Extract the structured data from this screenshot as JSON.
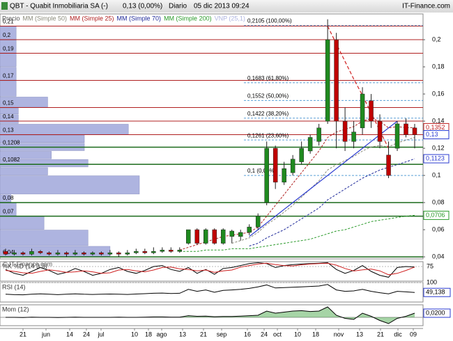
{
  "header": {
    "title": "QBT - Quabit Inmobiliaria SA (-)",
    "quote": "0,13 (0,00%)",
    "period": "Diario",
    "date": "05 dic 2013 09:24",
    "brand": "IT-Finance.com"
  },
  "watermark": "© IT-Finance.com",
  "x_axis": {
    "labels": [
      "21",
      "jun",
      "14",
      "24",
      "jul",
      "10",
      "18",
      "ago",
      "13",
      "21",
      "sep",
      "16",
      "24",
      "oct",
      "10",
      "18",
      "nov",
      "13",
      "21",
      "dic",
      "09"
    ]
  },
  "chart_data": [
    {
      "type": "candlestick",
      "legend_title": "Precio",
      "up_color": "#1f8a1f",
      "down_color": "#c00000",
      "open": [
        0.044,
        0.042,
        0.043,
        0.042,
        0.044,
        0.043,
        0.042,
        0.043,
        0.042,
        0.043,
        0.042,
        0.043,
        0.042,
        0.043,
        0.042,
        0.043,
        0.044,
        0.043,
        0.044,
        0.045,
        0.044,
        0.05,
        0.06,
        0.05,
        0.06,
        0.05,
        0.055,
        0.055,
        0.058,
        0.062,
        0.08,
        0.12,
        0.095,
        0.102,
        0.11,
        0.118,
        0.125,
        0.14,
        0.2,
        0.14,
        0.125,
        0.135,
        0.155,
        0.14,
        0.115,
        0.12,
        0.138,
        0.135
      ],
      "high": [
        0.046,
        0.045,
        0.044,
        0.046,
        0.045,
        0.044,
        0.045,
        0.044,
        0.045,
        0.044,
        0.044,
        0.044,
        0.045,
        0.044,
        0.045,
        0.046,
        0.046,
        0.047,
        0.047,
        0.047,
        0.047,
        0.06,
        0.061,
        0.061,
        0.061,
        0.061,
        0.06,
        0.06,
        0.064,
        0.072,
        0.125,
        0.122,
        0.11,
        0.115,
        0.125,
        0.13,
        0.138,
        0.215,
        0.205,
        0.15,
        0.14,
        0.165,
        0.16,
        0.145,
        0.125,
        0.14,
        0.142,
        0.138
      ],
      "low": [
        0.041,
        0.041,
        0.041,
        0.041,
        0.042,
        0.041,
        0.041,
        0.04,
        0.041,
        0.041,
        0.041,
        0.041,
        0.041,
        0.04,
        0.041,
        0.042,
        0.042,
        0.042,
        0.043,
        0.043,
        0.043,
        0.049,
        0.049,
        0.049,
        0.049,
        0.049,
        0.05,
        0.052,
        0.056,
        0.06,
        0.078,
        0.09,
        0.093,
        0.1,
        0.108,
        0.116,
        0.122,
        0.138,
        0.12,
        0.118,
        0.12,
        0.13,
        0.135,
        0.12,
        0.098,
        0.118,
        0.128,
        0.12
      ],
      "close": [
        0.042,
        0.043,
        0.042,
        0.044,
        0.043,
        0.042,
        0.043,
        0.042,
        0.043,
        0.042,
        0.043,
        0.042,
        0.043,
        0.042,
        0.043,
        0.044,
        0.043,
        0.044,
        0.045,
        0.044,
        0.045,
        0.06,
        0.05,
        0.06,
        0.05,
        0.06,
        0.059,
        0.058,
        0.062,
        0.07,
        0.12,
        0.095,
        0.105,
        0.112,
        0.12,
        0.128,
        0.135,
        0.2,
        0.14,
        0.125,
        0.132,
        0.16,
        0.14,
        0.125,
        0.1,
        0.138,
        0.13,
        0.13
      ],
      "series": [
        {
          "name": "MM (Simple 50)",
          "color": "#8a8a7a",
          "values": [
            null,
            null,
            null,
            null,
            null,
            null,
            null,
            null,
            null,
            null,
            null,
            null,
            null,
            null,
            null,
            null,
            null,
            null,
            null,
            null,
            null,
            null,
            null,
            null,
            null,
            null,
            0.05,
            0.052,
            0.054,
            0.058,
            0.064,
            0.068,
            0.073,
            0.078,
            0.084,
            0.09,
            0.096,
            0.104,
            0.108,
            0.111,
            0.114,
            0.118,
            0.121,
            0.122,
            0.121,
            0.124,
            0.126,
            0.128
          ]
        },
        {
          "name": "MM (Simple 25)",
          "color": "#b02020",
          "values": [
            null,
            null,
            null,
            null,
            null,
            null,
            null,
            null,
            null,
            null,
            null,
            null,
            null,
            null,
            null,
            null,
            null,
            null,
            null,
            null,
            0.045,
            0.047,
            0.049,
            0.051,
            0.053,
            0.055,
            0.056,
            0.057,
            0.058,
            0.062,
            0.07,
            0.078,
            0.086,
            0.094,
            0.102,
            0.11,
            0.118,
            0.128,
            0.132,
            0.134,
            0.136,
            0.14,
            0.142,
            0.14,
            0.135,
            0.136,
            0.1352,
            0.1352
          ]
        },
        {
          "name": "MM (Simple 70)",
          "color": "#1f2a9a",
          "values": [
            null,
            null,
            null,
            null,
            null,
            null,
            null,
            null,
            null,
            null,
            null,
            null,
            null,
            null,
            null,
            null,
            null,
            null,
            null,
            null,
            null,
            null,
            null,
            null,
            null,
            null,
            null,
            null,
            0.048,
            0.05,
            0.054,
            0.057,
            0.06,
            0.064,
            0.068,
            0.072,
            0.076,
            0.082,
            0.086,
            0.09,
            0.094,
            0.098,
            0.101,
            0.104,
            0.106,
            0.108,
            0.11,
            0.1123
          ]
        },
        {
          "name": "MM (Simple 200)",
          "color": "#2a9a2a",
          "values": [
            null,
            null,
            null,
            null,
            null,
            null,
            null,
            null,
            null,
            null,
            null,
            null,
            null,
            null,
            null,
            null,
            null,
            null,
            null,
            null,
            0.044,
            0.044,
            0.044,
            0.045,
            0.045,
            0.045,
            0.046,
            0.046,
            0.046,
            0.047,
            0.048,
            0.049,
            0.05,
            0.051,
            0.052,
            0.053,
            0.055,
            0.057,
            0.059,
            0.06,
            0.062,
            0.064,
            0.066,
            0.067,
            0.068,
            0.069,
            0.07,
            0.0706
          ]
        }
      ],
      "trendlines": [
        {
          "color": "#2a3ad0",
          "values": [
            null,
            null,
            null,
            null,
            null,
            null,
            null,
            null,
            null,
            null,
            null,
            null,
            null,
            null,
            null,
            null,
            null,
            null,
            null,
            null,
            null,
            null,
            null,
            null,
            null,
            null,
            null,
            null,
            0.055,
            0.06,
            0.065,
            0.07,
            0.075,
            0.08,
            0.085,
            0.09,
            0.095,
            0.1,
            0.105,
            0.11,
            0.115,
            0.12,
            0.125,
            0.13,
            0.135,
            0.14,
            null,
            null
          ]
        },
        {
          "color": "#d02020",
          "values": [
            null,
            null,
            null,
            null,
            null,
            null,
            null,
            null,
            null,
            null,
            null,
            null,
            null,
            null,
            null,
            null,
            null,
            null,
            null,
            null,
            null,
            null,
            null,
            null,
            null,
            null,
            null,
            null,
            null,
            null,
            null,
            null,
            null,
            null,
            null,
            null,
            null,
            0.21,
            0.197,
            0.184,
            0.171,
            0.159,
            0.146,
            0.133,
            0.12,
            null,
            null,
            null
          ]
        }
      ],
      "vnp": {
        "name": "VNP (25,1)",
        "color": "#aeb4e0",
        "bins": [
          0.04,
          0.048,
          0.06,
          0.07,
          0.08,
          0.086,
          0.1,
          0.106,
          0.112,
          0.118,
          0.124,
          0.13,
          0.138,
          0.145,
          0.15,
          0.158,
          0.17,
          0.18,
          0.19,
          0.2,
          0.21
        ],
        "values": [
          150,
          120,
          60,
          22,
          15,
          190,
          65,
          120,
          70,
          115,
          115,
          175,
          25,
          25,
          65,
          22,
          22,
          22,
          22,
          22
        ]
      },
      "levels": [
        {
          "value": 0.21,
          "label": "0,21",
          "color": "#b02020"
        },
        {
          "value": 0.2,
          "label": "0,2",
          "color": "#b02020"
        },
        {
          "value": 0.19,
          "label": "0,19",
          "color": "#b02020"
        },
        {
          "value": 0.17,
          "label": "0,17",
          "color": "#b02020"
        },
        {
          "value": 0.15,
          "label": "0,15",
          "color": "#b02020"
        },
        {
          "value": 0.14,
          "label": "0,14",
          "color": "#b02020"
        },
        {
          "value": 0.13,
          "label": "0,13",
          "color": "#b02020"
        },
        {
          "value": 0.1208,
          "label": "0,1208",
          "color": "#1a6a1a"
        },
        {
          "value": 0.1082,
          "label": "0,1082",
          "color": "#1a6a1a"
        },
        {
          "value": 0.08,
          "label": "0,08",
          "color": "#1a6a1a"
        },
        {
          "value": 0.07,
          "label": "0,07",
          "color": "#1a6a1a"
        },
        {
          "value": 0.04,
          "label": "0,04",
          "color": "#1a6a1a"
        }
      ],
      "fibonacci": [
        {
          "value": 0.2105,
          "label": "0,2105 (100,00%)"
        },
        {
          "value": 0.1683,
          "label": "0,1683 (61,80%)"
        },
        {
          "value": 0.1552,
          "label": "0,1552 (50,00%)"
        },
        {
          "value": 0.1422,
          "label": "0,1422 (38,20%)"
        },
        {
          "value": 0.1261,
          "label": "0,1261 (23,60%)"
        },
        {
          "value": 0.1,
          "label": "0,1 (0,00%)"
        }
      ],
      "last_values": [
        {
          "value": 0.1352,
          "label": "0,1352",
          "color": "#c02020"
        },
        {
          "value": 0.13,
          "label": "0,13",
          "color": "#2a3ad0"
        },
        {
          "value": 0.1123,
          "label": "0,1123",
          "color": "#2a3ad0"
        },
        {
          "value": 0.0706,
          "label": "0,0706",
          "color": "#2a9a2a"
        }
      ],
      "ylim": [
        0.0385,
        0.219
      ],
      "yticks": [
        {
          "value": 0.04,
          "label": "0,04"
        },
        {
          "value": 0.06,
          "label": "0,06"
        },
        {
          "value": 0.08,
          "label": "0,08"
        },
        {
          "value": 0.1,
          "label": "0,1"
        },
        {
          "value": 0.12,
          "label": "0,12"
        },
        {
          "value": 0.14,
          "label": "0,14"
        },
        {
          "value": 0.16,
          "label": "0,16"
        },
        {
          "value": 0.18,
          "label": "0,18"
        },
        {
          "value": 0.2,
          "label": "0,2"
        }
      ]
    },
    {
      "type": "line",
      "title": "%K %D (14 3 3)",
      "ylim": [
        0,
        100
      ],
      "yticks": [
        75
      ],
      "series": [
        {
          "color": "#000000",
          "values": [
            60,
            40,
            30,
            50,
            70,
            55,
            35,
            45,
            65,
            50,
            30,
            40,
            60,
            70,
            50,
            40,
            55,
            75,
            80,
            60,
            50,
            70,
            40,
            60,
            35,
            65,
            70,
            80,
            90,
            95,
            90,
            70,
            80,
            85,
            88,
            90,
            92,
            95,
            60,
            40,
            55,
            80,
            50,
            30,
            20,
            70,
            75,
            72
          ]
        },
        {
          "color": "#d02020",
          "values": [
            55,
            50,
            43,
            40,
            50,
            58,
            53,
            45,
            48,
            53,
            48,
            40,
            43,
            57,
            60,
            53,
            48,
            57,
            70,
            72,
            63,
            60,
            53,
            57,
            45,
            53,
            57,
            72,
            80,
            88,
            92,
            85,
            80,
            78,
            84,
            88,
            90,
            92,
            82,
            65,
            52,
            58,
            62,
            53,
            33,
            40,
            55,
            72
          ]
        }
      ]
    },
    {
      "type": "line",
      "title": "RSI (14)",
      "ylim": [
        0,
        100
      ],
      "yticks": [
        100
      ],
      "series": [
        {
          "color": "#000000",
          "values": [
            40,
            38,
            37,
            40,
            42,
            40,
            38,
            40,
            42,
            40,
            39,
            40,
            41,
            40,
            39,
            41,
            43,
            45,
            46,
            44,
            45,
            65,
            55,
            62,
            50,
            60,
            62,
            65,
            70,
            78,
            88,
            72,
            74,
            76,
            78,
            80,
            82,
            90,
            62,
            55,
            57,
            65,
            55,
            48,
            42,
            55,
            52,
            49.138
          ]
        }
      ],
      "last_value": {
        "value": 49.138,
        "label": "49,138"
      }
    },
    {
      "type": "area",
      "title": "Mom (12)",
      "ylim": [
        -0.04,
        0.06
      ],
      "fill": "#3aa03a",
      "series": [
        {
          "color": "#000000",
          "values": [
            0,
            0,
            -0.001,
            0.001,
            0,
            0,
            -0.001,
            0,
            0.001,
            0,
            0,
            0,
            0,
            0.001,
            0,
            0,
            0.001,
            0.002,
            0.002,
            0.001,
            0.001,
            0.008,
            0.005,
            0.006,
            0.003,
            0.004,
            0.004,
            0.006,
            0.008,
            0.01,
            0.03,
            0.02,
            0.025,
            0.03,
            0.032,
            0.028,
            0.03,
            0.05,
            0.01,
            -0.005,
            -0.01,
            0.02,
            0.005,
            -0.015,
            -0.03,
            -0.005,
            0.005,
            0.02
          ]
        }
      ],
      "last_value": {
        "value": 0.02,
        "label": "0,0200"
      }
    }
  ]
}
